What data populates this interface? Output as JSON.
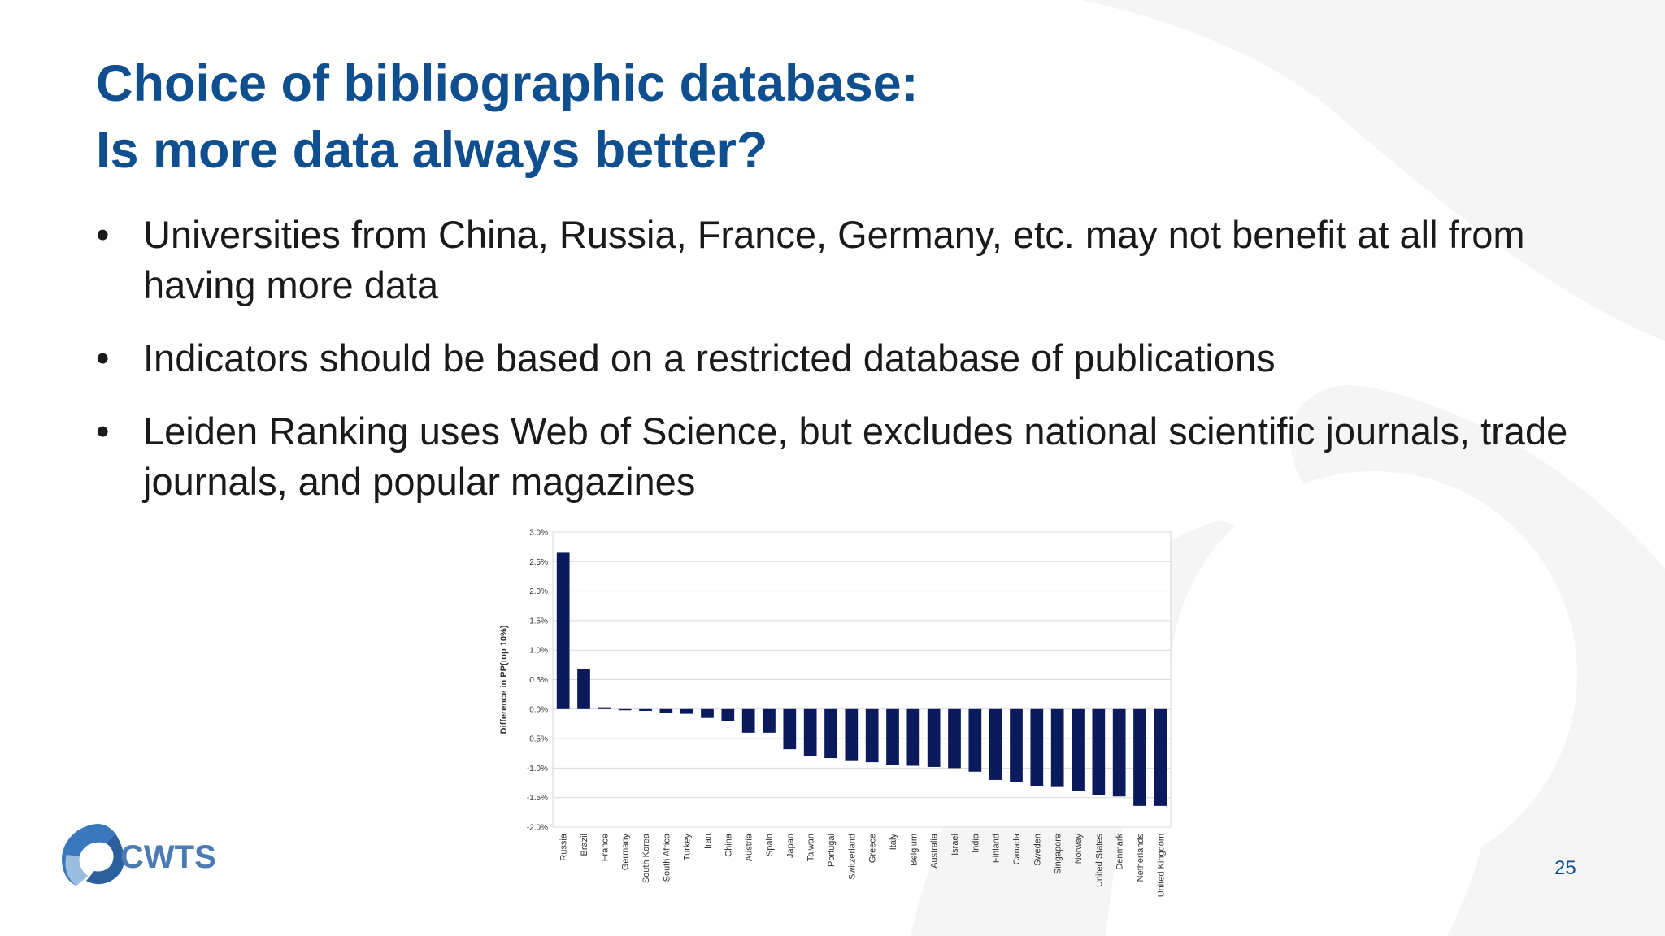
{
  "slide": {
    "title_line1": "Choice of bibliographic database:",
    "title_line2": "Is more data always better?",
    "bullets": [
      {
        "text": "Universities from China, Russia, France, Germany, etc. may not benefit at all from having more data"
      },
      {
        "text": "Indicators should be based on a restricted database of publications"
      },
      {
        "text": "Leiden Ranking uses Web of Science, but excludes national scientific journals, trade journals, and popular magazines"
      }
    ],
    "bullet_symbol": "•",
    "page_number": "25",
    "logo_text": "CWTS"
  },
  "colors": {
    "title": "#0f4f8f",
    "bar": "#0a1a5c",
    "logo_text": "#4a7bb5",
    "logo_mark": "#3a78bd",
    "bg_shape": "#f4f4f4"
  },
  "chart_data": {
    "type": "bar",
    "ylabel": "Difference in PP(top 10%)",
    "ylim": [
      -2.0,
      3.0
    ],
    "yticks": [
      3.0,
      2.5,
      2.0,
      1.5,
      1.0,
      0.5,
      0.0,
      -0.5,
      -1.0,
      -1.5,
      -2.0
    ],
    "ytick_labels": [
      "3.0%",
      "2.5%",
      "2.0%",
      "1.5%",
      "1.0%",
      "0.5%",
      "0.0%",
      "-0.5%",
      "-1.0%",
      "-1.5%",
      "-2.0%"
    ],
    "grid": true,
    "categories": [
      "Russia",
      "Brazil",
      "France",
      "Germany",
      "South Korea",
      "South Africa",
      "Turkey",
      "Iran",
      "China",
      "Austria",
      "Spain",
      "Japan",
      "Taiwan",
      "Portugal",
      "Switzerland",
      "Greece",
      "Italy",
      "Belgium",
      "Australia",
      "Israel",
      "India",
      "Finland",
      "Canada",
      "Sweden",
      "Singapore",
      "Norway",
      "United States",
      "Denmark",
      "Netherlands",
      "United Kingdom"
    ],
    "values": [
      2.65,
      0.68,
      0.03,
      -0.02,
      -0.03,
      -0.06,
      -0.08,
      -0.15,
      -0.2,
      -0.4,
      -0.4,
      -0.68,
      -0.8,
      -0.83,
      -0.88,
      -0.9,
      -0.94,
      -0.96,
      -0.98,
      -1.0,
      -1.06,
      -1.2,
      -1.24,
      -1.3,
      -1.32,
      -1.38,
      -1.45,
      -1.48,
      -1.64,
      -1.64
    ]
  }
}
